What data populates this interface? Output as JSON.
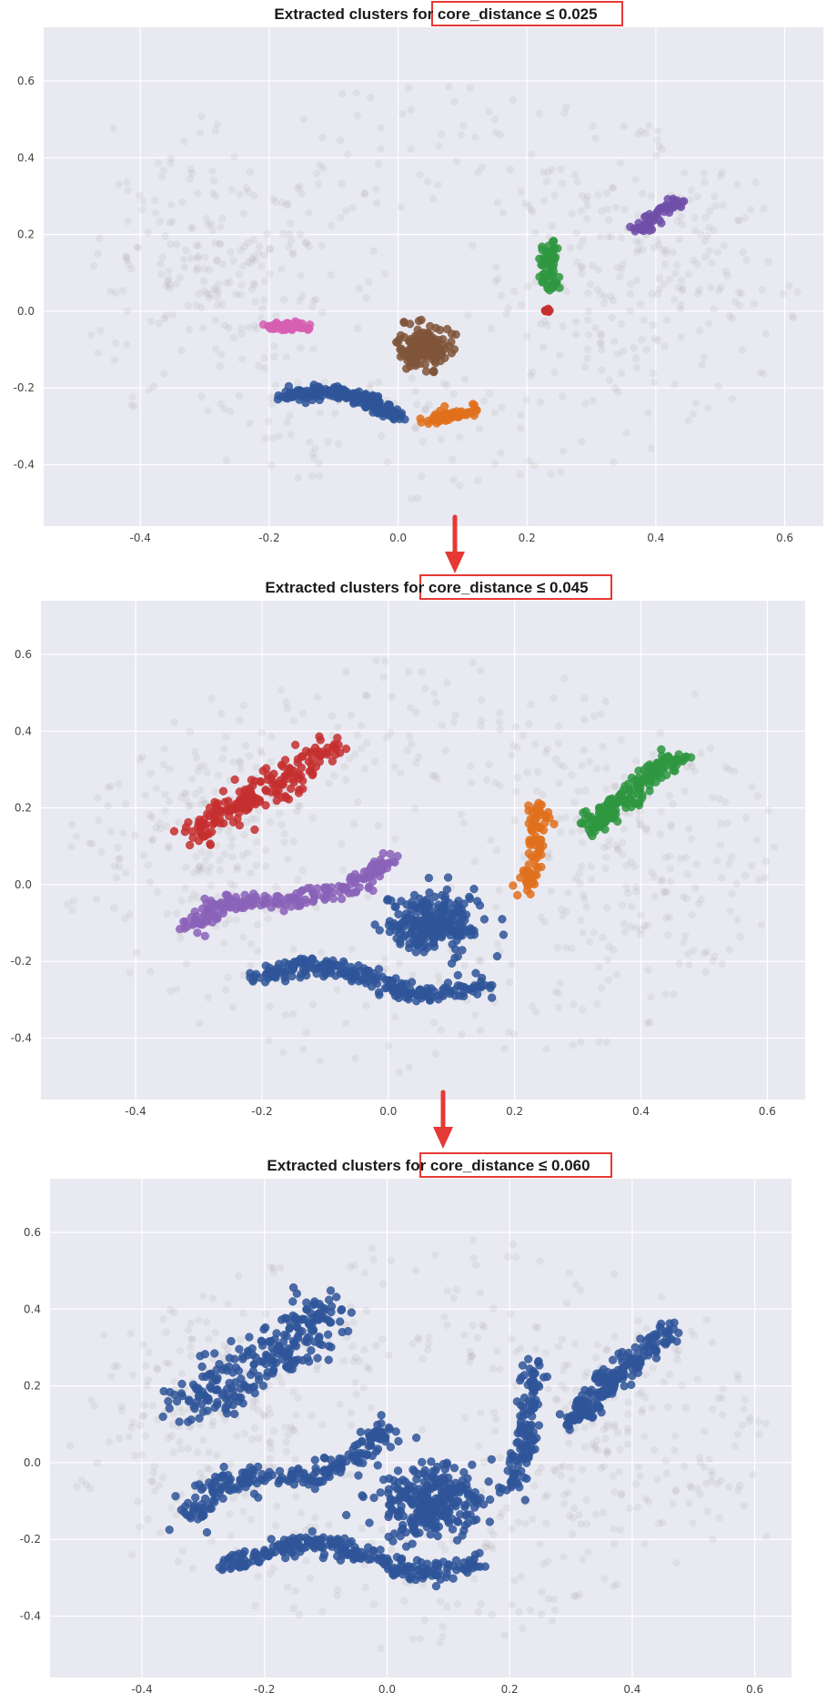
{
  "colors": {
    "background": "#e9e9f1",
    "grid": "#ffffff",
    "noise": "#9a9a9a",
    "highlight_box": "#e53935",
    "arrow": "#e53935"
  },
  "chart_data": [
    {
      "type": "scatter",
      "title_prefix": "Extracted clusters for ",
      "title_highlight": "core_distance ≤ 0.025",
      "xlim": [
        -0.55,
        0.66
      ],
      "ylim": [
        -0.56,
        0.74
      ],
      "xticks": [
        -0.4,
        -0.2,
        0.0,
        0.2,
        0.4,
        0.6
      ],
      "yticks": [
        -0.4,
        -0.2,
        0.0,
        0.2,
        0.4,
        0.6
      ],
      "xtick_labels": [
        "-0.4",
        "-0.2",
        "0.0",
        "0.2",
        "0.4",
        "0.6"
      ],
      "ytick_labels": [
        "-0.4",
        "-0.2",
        "0.0",
        "0.2",
        "0.4",
        "0.6"
      ],
      "grid": true,
      "noise_points": "grey, translucent background points",
      "clusters": [
        {
          "color": "#d65fb2",
          "shape": "blob",
          "center": [
            -0.17,
            -0.04
          ],
          "spread": [
            0.04,
            0.012
          ],
          "count": 60
        },
        {
          "color": "#7f5539",
          "shape": "blob",
          "center": [
            0.04,
            -0.095
          ],
          "spread": [
            0.04,
            0.055
          ],
          "count": 160
        },
        {
          "color": "#2f5599",
          "shape": "curve",
          "path": [
            [
              -0.18,
              -0.22
            ],
            [
              -0.1,
              -0.21
            ],
            [
              -0.04,
              -0.24
            ],
            [
              0.0,
              -0.28
            ]
          ],
          "width": 0.015,
          "count": 190
        },
        {
          "color": "#e0701c",
          "shape": "curve",
          "path": [
            [
              0.04,
              -0.28
            ],
            [
              0.1,
              -0.27
            ],
            [
              0.12,
              -0.26
            ]
          ],
          "width": 0.014,
          "count": 70
        },
        {
          "color": "#2e9640",
          "shape": "curve",
          "path": [
            [
              0.235,
              0.05
            ],
            [
              0.235,
              0.12
            ],
            [
              0.24,
              0.18
            ]
          ],
          "width": 0.012,
          "count": 60
        },
        {
          "color": "#c62f2f",
          "shape": "blob",
          "center": [
            0.232,
            0.0
          ],
          "spread": [
            0.01,
            0.006
          ],
          "count": 10
        },
        {
          "color": "#6f4fa8",
          "shape": "curve",
          "path": [
            [
              0.37,
              0.21
            ],
            [
              0.4,
              0.25
            ],
            [
              0.44,
              0.29
            ]
          ],
          "width": 0.013,
          "count": 60
        }
      ]
    },
    {
      "type": "scatter",
      "title_prefix": "Extracted clusters for ",
      "title_highlight": "core_distance ≤ 0.045",
      "xlim": [
        -0.55,
        0.66
      ],
      "ylim": [
        -0.56,
        0.74
      ],
      "xticks": [
        -0.4,
        -0.2,
        0.0,
        0.2,
        0.4,
        0.6
      ],
      "yticks": [
        -0.4,
        -0.2,
        0.0,
        0.2,
        0.4,
        0.6
      ],
      "xtick_labels": [
        "-0.4",
        "-0.2",
        "0.0",
        "0.2",
        "0.4",
        "0.6"
      ],
      "ytick_labels": [
        "-0.4",
        "-0.2",
        "0.0",
        "0.2",
        "0.4",
        "0.6"
      ],
      "grid": true,
      "noise_points": "grey, translucent background points",
      "clusters": [
        {
          "color": "#c62f2f",
          "shape": "curve",
          "path": [
            [
              -0.31,
              0.13
            ],
            [
              -0.22,
              0.22
            ],
            [
              -0.15,
              0.29
            ],
            [
              -0.09,
              0.37
            ]
          ],
          "width": 0.03,
          "count": 200
        },
        {
          "color": "#8a62b8",
          "shape": "curve",
          "path": [
            [
              -0.32,
              -0.13
            ],
            [
              -0.27,
              -0.05
            ],
            [
              -0.15,
              -0.04
            ],
            [
              -0.05,
              0.0
            ],
            [
              0.0,
              0.08
            ]
          ],
          "width": 0.02,
          "count": 200
        },
        {
          "color": "#2f5599",
          "shape": "blob",
          "center": [
            0.07,
            -0.1
          ],
          "spread": [
            0.07,
            0.08
          ],
          "count": 260
        },
        {
          "color": "#2f5599",
          "shape": "curve",
          "path": [
            [
              -0.22,
              -0.25
            ],
            [
              -0.13,
              -0.2
            ],
            [
              -0.03,
              -0.24
            ],
            [
              0.05,
              -0.29
            ],
            [
              0.15,
              -0.26
            ]
          ],
          "width": 0.02,
          "count": 240
        },
        {
          "color": "#e0701c",
          "shape": "curve",
          "path": [
            [
              0.22,
              -0.02
            ],
            [
              0.23,
              0.08
            ],
            [
              0.24,
              0.21
            ]
          ],
          "width": 0.015,
          "count": 90
        },
        {
          "color": "#2e9640",
          "shape": "curve",
          "path": [
            [
              0.32,
              0.15
            ],
            [
              0.39,
              0.25
            ],
            [
              0.46,
              0.34
            ]
          ],
          "width": 0.02,
          "count": 170
        }
      ]
    },
    {
      "type": "scatter",
      "title_prefix": "Extracted clusters for ",
      "title_highlight": "core_distance ≤ 0.060",
      "xlim": [
        -0.55,
        0.66
      ],
      "ylim": [
        -0.56,
        0.74
      ],
      "xticks": [
        -0.4,
        -0.2,
        0.0,
        0.2,
        0.4,
        0.6
      ],
      "yticks": [
        -0.4,
        -0.2,
        0.0,
        0.2,
        0.4,
        0.6
      ],
      "xtick_labels": [
        "-0.4",
        "-0.2",
        "0.0",
        "0.2",
        "0.4",
        "0.6"
      ],
      "ytick_labels": [
        "-0.4",
        "-0.2",
        "0.0",
        "0.2",
        "0.4",
        "0.6"
      ],
      "grid": true,
      "noise_points": "grey, translucent background points",
      "clusters": [
        {
          "color": "#2f5599",
          "shape": "curve",
          "path": [
            [
              -0.33,
              0.14
            ],
            [
              -0.25,
              0.22
            ],
            [
              -0.16,
              0.3
            ],
            [
              -0.1,
              0.42
            ]
          ],
          "width": 0.05,
          "count": 260
        },
        {
          "color": "#2f5599",
          "shape": "curve",
          "path": [
            [
              -0.32,
              -0.15
            ],
            [
              -0.27,
              -0.05
            ],
            [
              -0.15,
              -0.04
            ],
            [
              -0.05,
              0.0
            ],
            [
              0.0,
              0.1
            ]
          ],
          "width": 0.025,
          "count": 230
        },
        {
          "color": "#2f5599",
          "shape": "blob",
          "center": [
            0.07,
            -0.1
          ],
          "spread": [
            0.08,
            0.09
          ],
          "count": 300
        },
        {
          "color": "#2f5599",
          "shape": "curve",
          "path": [
            [
              -0.26,
              -0.27
            ],
            [
              -0.13,
              -0.2
            ],
            [
              -0.03,
              -0.24
            ],
            [
              0.05,
              -0.29
            ],
            [
              0.15,
              -0.26
            ]
          ],
          "width": 0.022,
          "count": 260
        },
        {
          "color": "#2f5599",
          "shape": "curve",
          "path": [
            [
              0.2,
              -0.08
            ],
            [
              0.23,
              0.08
            ],
            [
              0.24,
              0.26
            ]
          ],
          "width": 0.018,
          "count": 130
        },
        {
          "color": "#2f5599",
          "shape": "curve",
          "path": [
            [
              0.3,
              0.1
            ],
            [
              0.38,
              0.24
            ],
            [
              0.46,
              0.34
            ]
          ],
          "width": 0.022,
          "count": 200
        }
      ]
    }
  ]
}
